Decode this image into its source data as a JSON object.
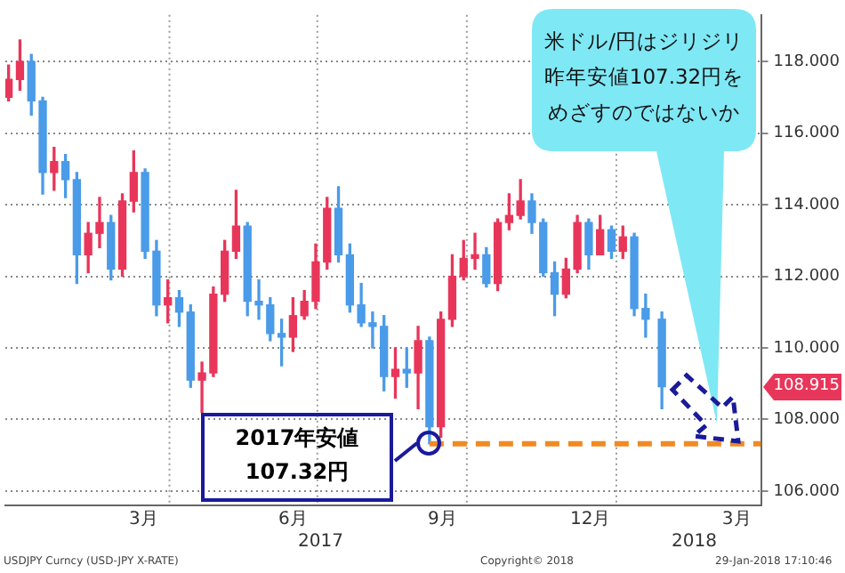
{
  "chart_data": {
    "type": "candlestick",
    "x": [
      "2016-12-23",
      "2016-12-30",
      "2017-01-06",
      "2017-01-13",
      "2017-01-20",
      "2017-01-27",
      "2017-02-03",
      "2017-02-10",
      "2017-02-17",
      "2017-02-24",
      "2017-03-03",
      "2017-03-10",
      "2017-03-17",
      "2017-03-24",
      "2017-03-31",
      "2017-04-07",
      "2017-04-14",
      "2017-04-21",
      "2017-04-28",
      "2017-05-05",
      "2017-05-12",
      "2017-05-19",
      "2017-05-26",
      "2017-06-02",
      "2017-06-09",
      "2017-06-16",
      "2017-06-23",
      "2017-06-30",
      "2017-07-07",
      "2017-07-14",
      "2017-07-21",
      "2017-07-28",
      "2017-08-04",
      "2017-08-11",
      "2017-08-18",
      "2017-08-25",
      "2017-09-01",
      "2017-09-08",
      "2017-09-15",
      "2017-09-22",
      "2017-09-29",
      "2017-10-06",
      "2017-10-13",
      "2017-10-20",
      "2017-10-27",
      "2017-11-03",
      "2017-11-10",
      "2017-11-17",
      "2017-11-24",
      "2017-12-01",
      "2017-12-08",
      "2017-12-15",
      "2017-12-22",
      "2017-12-29",
      "2018-01-05",
      "2018-01-12",
      "2018-01-19",
      "2018-01-29"
    ],
    "ohlc": [
      [
        117.0,
        117.9,
        116.9,
        117.5
      ],
      [
        117.5,
        118.6,
        117.2,
        118.0
      ],
      [
        118.0,
        118.2,
        116.5,
        116.9
      ],
      [
        116.9,
        117.0,
        114.3,
        114.9
      ],
      [
        114.9,
        115.6,
        114.4,
        115.2
      ],
      [
        115.2,
        115.4,
        114.2,
        114.7
      ],
      [
        114.7,
        114.9,
        111.8,
        112.6
      ],
      [
        112.6,
        113.5,
        112.1,
        113.2
      ],
      [
        113.2,
        114.2,
        112.8,
        113.5
      ],
      [
        113.5,
        113.7,
        111.9,
        112.2
      ],
      [
        112.2,
        114.3,
        112.0,
        114.1
      ],
      [
        114.1,
        115.5,
        113.8,
        114.9
      ],
      [
        114.9,
        115.0,
        112.5,
        112.7
      ],
      [
        112.7,
        113.0,
        110.9,
        111.2
      ],
      [
        111.2,
        111.9,
        110.7,
        111.4
      ],
      [
        111.4,
        111.6,
        110.6,
        111.0
      ],
      [
        111.0,
        111.2,
        108.9,
        109.1
      ],
      [
        109.1,
        109.6,
        108.2,
        109.3
      ],
      [
        109.3,
        111.7,
        109.2,
        111.5
      ],
      [
        111.5,
        113.0,
        111.3,
        112.7
      ],
      [
        112.7,
        114.4,
        112.5,
        113.4
      ],
      [
        113.4,
        113.5,
        110.9,
        111.3
      ],
      [
        111.3,
        111.9,
        110.8,
        111.2
      ],
      [
        111.2,
        111.4,
        110.2,
        110.4
      ],
      [
        110.4,
        110.8,
        109.5,
        110.3
      ],
      [
        110.3,
        111.4,
        109.9,
        110.9
      ],
      [
        110.9,
        111.6,
        110.8,
        111.3
      ],
      [
        111.3,
        112.9,
        111.1,
        112.4
      ],
      [
        112.4,
        114.2,
        112.2,
        113.9
      ],
      [
        113.9,
        114.5,
        112.4,
        112.6
      ],
      [
        112.6,
        112.9,
        111.0,
        111.2
      ],
      [
        111.2,
        111.8,
        110.6,
        110.7
      ],
      [
        110.7,
        111.0,
        110.0,
        110.6
      ],
      [
        110.6,
        110.9,
        108.8,
        109.2
      ],
      [
        109.2,
        110.0,
        108.6,
        109.4
      ],
      [
        109.4,
        110.0,
        108.9,
        109.3
      ],
      [
        109.3,
        110.6,
        108.3,
        110.2
      ],
      [
        110.2,
        110.3,
        107.32,
        107.8
      ],
      [
        107.8,
        111.0,
        107.5,
        110.8
      ],
      [
        110.8,
        112.6,
        110.6,
        112.0
      ],
      [
        112.0,
        113.0,
        111.9,
        112.5
      ],
      [
        112.5,
        113.2,
        112.2,
        112.6
      ],
      [
        112.6,
        112.8,
        111.7,
        111.8
      ],
      [
        111.8,
        113.6,
        111.6,
        113.5
      ],
      [
        113.5,
        114.3,
        113.3,
        113.7
      ],
      [
        113.7,
        114.7,
        113.6,
        114.1
      ],
      [
        114.1,
        114.3,
        113.2,
        113.5
      ],
      [
        113.5,
        113.6,
        112.0,
        112.1
      ],
      [
        112.1,
        112.4,
        110.9,
        111.5
      ],
      [
        111.5,
        112.5,
        111.4,
        112.2
      ],
      [
        112.2,
        113.7,
        112.1,
        113.5
      ],
      [
        113.5,
        113.6,
        112.2,
        112.6
      ],
      [
        112.6,
        113.7,
        112.6,
        113.3
      ],
      [
        113.3,
        113.4,
        112.5,
        112.7
      ],
      [
        112.7,
        113.4,
        112.5,
        113.1
      ],
      [
        113.1,
        113.2,
        110.9,
        111.1
      ],
      [
        111.1,
        111.5,
        110.3,
        110.8
      ],
      [
        110.8,
        111.0,
        108.3,
        108.915
      ]
    ],
    "colors": [
      "#e8365a",
      "#e8365a",
      "#4a9be8",
      "#4a9be8",
      "#e8365a",
      "#4a9be8",
      "#4a9be8",
      "#e8365a",
      "#e8365a",
      "#4a9be8",
      "#e8365a",
      "#e8365a",
      "#4a9be8",
      "#4a9be8",
      "#e8365a",
      "#4a9be8",
      "#4a9be8",
      "#e8365a",
      "#e8365a",
      "#e8365a",
      "#e8365a",
      "#4a9be8",
      "#4a9be8",
      "#4a9be8",
      "#4a9be8",
      "#e8365a",
      "#e8365a",
      "#e8365a",
      "#e8365a",
      "#4a9be8",
      "#4a9be8",
      "#4a9be8",
      "#4a9be8",
      "#4a9be8",
      "#e8365a",
      "#4a9be8",
      "#e8365a",
      "#4a9be8",
      "#e8365a",
      "#e8365a",
      "#e8365a",
      "#e8365a",
      "#4a9be8",
      "#e8365a",
      "#e8365a",
      "#e8365a",
      "#4a9be8",
      "#4a9be8",
      "#4a9be8",
      "#e8365a",
      "#e8365a",
      "#4a9be8",
      "#e8365a",
      "#4a9be8",
      "#e8365a",
      "#4a9be8",
      "#4a9be8",
      "#4a9be8"
    ],
    "series": [
      {
        "type": "line",
        "x": [
          "2017-09-08",
          "2018-03-31"
        ],
        "values": [
          107.32,
          107.32
        ],
        "color": "#f08a24",
        "line_style": "dashed"
      }
    ],
    "xlim": [
      "2016-12-21",
      "2018-03-31"
    ],
    "xticks": [
      {
        "value": "2017-03-16",
        "label": "3月"
      },
      {
        "value": "2017-06-16",
        "label": "6月"
      },
      {
        "value": "2017-09-16",
        "label": "9月"
      },
      {
        "value": "2017-12-16",
        "label": "12月"
      },
      {
        "value": "2018-03-16",
        "label": "3月"
      }
    ],
    "ylim": [
      105.6,
      119.3
    ],
    "yticks": [
      {
        "value": 106,
        "label": "106.000"
      },
      {
        "value": 108,
        "label": "108.000"
      },
      {
        "value": 110,
        "label": "110.000"
      },
      {
        "value": 112,
        "label": "112.000"
      },
      {
        "value": 114,
        "label": "114.000"
      },
      {
        "value": 116,
        "label": "116.000"
      },
      {
        "value": 118,
        "label": "118.000"
      }
    ],
    "grid": "y",
    "ref_lines": [
      {
        "axis": "x",
        "value": "2017-04-01",
        "color": "#9a9a9a",
        "line_style": "dotted"
      },
      {
        "axis": "x",
        "value": "2017-07-01",
        "color": "#9a9a9a",
        "line_style": "dotted"
      },
      {
        "axis": "x",
        "value": "2017-10-01",
        "color": "#9a9a9a",
        "line_style": "dotted"
      },
      {
        "axis": "x",
        "value": "2018-01-01",
        "color": "#9a9a9a",
        "line_style": "dotted"
      }
    ],
    "annotations": [
      "米ドル/円はジリジリ",
      "昨年安値107.32円を",
      "めざすのではないか",
      "2017年安値107.32円",
      "108.915",
      "2017",
      "2018",
      "USDJPY Curncy (USD-JPY X-RATE)",
      "Copyright© 2018",
      "29-Jan-2018 17:10:46"
    ],
    "legend": false
  }
}
